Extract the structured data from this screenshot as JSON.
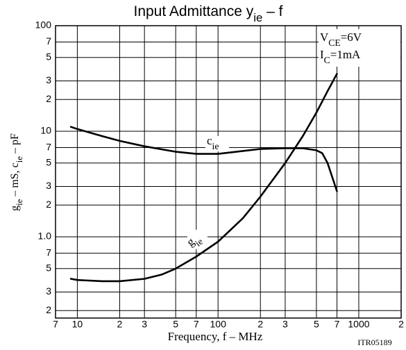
{
  "chart_data": {
    "type": "line",
    "title_parts": [
      {
        "text": "Input Admittance  y"
      },
      {
        "text": "ie",
        "sub": true
      },
      {
        "text": "  –  f"
      }
    ],
    "ylabel_parts": [
      {
        "text": "g"
      },
      {
        "text": "ie",
        "sub": true
      },
      {
        "text": "  –  mS,  c"
      },
      {
        "text": "ie",
        "sub": true
      },
      {
        "text": "  –  pF"
      }
    ],
    "xlabel": "Frequency, f  –  MHz",
    "footnote": "ITR05189",
    "annotations": [
      [
        {
          "text": "V"
        },
        {
          "text": "CE",
          "sub": true
        },
        {
          "text": "=6V"
        }
      ],
      [
        {
          "text": "I"
        },
        {
          "text": "C",
          "sub": true
        },
        {
          "text": "=1mA"
        }
      ]
    ],
    "log_x": true,
    "log_y": true,
    "grid": true,
    "xlim": [
      7,
      2000
    ],
    "ylim": [
      0.17,
      100
    ],
    "xticks": [
      7,
      10,
      {
        "value": 20,
        "label": "2"
      },
      {
        "value": 30,
        "label": "3"
      },
      {
        "value": 50,
        "label": "5"
      },
      {
        "value": 70,
        "label": "7"
      },
      100,
      {
        "value": 200,
        "label": "2"
      },
      {
        "value": 300,
        "label": "3"
      },
      {
        "value": 500,
        "label": "5"
      },
      {
        "value": 700,
        "label": "7"
      },
      1000,
      {
        "value": 2000,
        "label": "2"
      }
    ],
    "yticks": [
      100,
      {
        "value": 70,
        "label": "7"
      },
      {
        "value": 50,
        "label": "5"
      },
      {
        "value": 30,
        "label": "3"
      },
      {
        "value": 20,
        "label": "2"
      },
      10,
      {
        "value": 7,
        "label": "7"
      },
      {
        "value": 5,
        "label": "5"
      },
      {
        "value": 3,
        "label": "3"
      },
      {
        "value": 2,
        "label": "2"
      },
      {
        "value": 1,
        "label": "1.0"
      },
      {
        "value": 0.7,
        "label": "7"
      },
      {
        "value": 0.5,
        "label": "5"
      },
      {
        "value": 0.3,
        "label": "3"
      },
      {
        "value": 0.2,
        "label": "2"
      }
    ],
    "series": [
      {
        "name_parts": [
          {
            "text": "c"
          },
          {
            "text": "ie",
            "sub": true
          }
        ],
        "color": "#000000",
        "x": [
          9,
          10,
          15,
          20,
          30,
          50,
          70,
          100,
          150,
          200,
          300,
          400,
          500,
          550,
          600,
          700
        ],
        "values": [
          11,
          10.5,
          9,
          8.1,
          7.2,
          6.4,
          6.1,
          6.1,
          6.5,
          6.8,
          6.9,
          6.9,
          6.6,
          6.2,
          5,
          2.7
        ]
      },
      {
        "name_parts": [
          {
            "text": "g"
          },
          {
            "text": "ie",
            "sub": true
          }
        ],
        "color": "#000000",
        "x": [
          9,
          10,
          15,
          20,
          30,
          40,
          50,
          70,
          100,
          150,
          200,
          300,
          400,
          500,
          600,
          700
        ],
        "values": [
          0.4,
          0.39,
          0.38,
          0.38,
          0.4,
          0.44,
          0.5,
          0.65,
          0.9,
          1.5,
          2.4,
          5,
          9,
          15,
          24,
          35
        ]
      }
    ]
  }
}
